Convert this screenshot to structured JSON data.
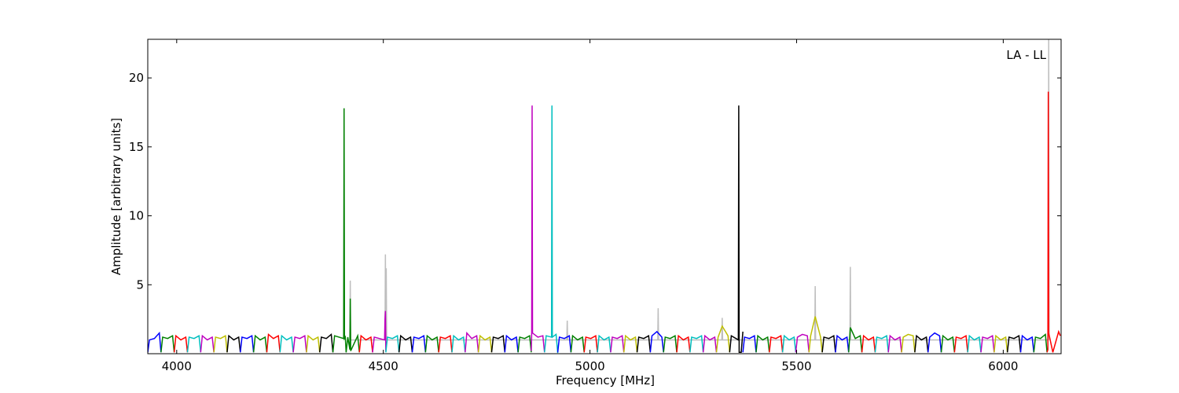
{
  "chart_data": {
    "type": "line",
    "annotation": "LA - LL",
    "xlabel": "Frequency [MHz]",
    "ylabel": "Amplitude [arbitrary units]",
    "xlim": [
      3930,
      6140
    ],
    "ylim": [
      0,
      22.8
    ],
    "xticks": [
      4000,
      4500,
      5000,
      5500,
      6000
    ],
    "yticks": [
      5,
      10,
      15,
      20
    ],
    "series": [
      {
        "color": "#bebebe",
        "x": [
          4419,
          4420,
          4421,
          4504,
          4505,
          4506,
          4507,
          4508,
          4944,
          4945,
          4946,
          5164,
          5165,
          5166,
          5319,
          5320,
          5321,
          5544,
          5545,
          5546,
          5629,
          5630,
          5631,
          6109,
          6110,
          6111
        ],
        "values": [
          1,
          5.3,
          1,
          1,
          7.2,
          1,
          6.2,
          1,
          1,
          2.4,
          1,
          1,
          3.3,
          1,
          1,
          2.6,
          1,
          1,
          4.9,
          1,
          1,
          6.3,
          1,
          1,
          22.8,
          1
        ]
      },
      {
        "color": "#0000ff",
        "x": [
          3930,
          3934,
          3946,
          3958,
          3962
        ],
        "values": [
          0.1,
          1.0,
          1.1,
          1.5,
          0.1
        ]
      },
      {
        "color": "#008000",
        "x": [
          3962,
          3966,
          3978,
          3990,
          3994
        ],
        "values": [
          0.1,
          1.2,
          1.1,
          1.3,
          0.1
        ]
      },
      {
        "color": "#ff0000",
        "x": [
          3994,
          3998,
          4010,
          4022,
          4026
        ],
        "values": [
          0.1,
          1.3,
          1.0,
          1.2,
          0.1
        ]
      },
      {
        "color": "#00bfbf",
        "x": [
          4026,
          4030,
          4042,
          4054,
          4058
        ],
        "values": [
          0.1,
          1.2,
          1.1,
          1.3,
          0.1
        ]
      },
      {
        "color": "#bf00bf",
        "x": [
          4058,
          4062,
          4074,
          4086,
          4090
        ],
        "values": [
          0.1,
          1.3,
          1.0,
          1.2,
          0.1
        ]
      },
      {
        "color": "#bfbf00",
        "x": [
          4090,
          4094,
          4106,
          4118,
          4122
        ],
        "values": [
          0.1,
          1.2,
          1.1,
          1.3,
          0.1
        ]
      },
      {
        "color": "#000000",
        "x": [
          4122,
          4126,
          4138,
          4150,
          4154
        ],
        "values": [
          0.1,
          1.3,
          1.0,
          1.2,
          0.1
        ]
      },
      {
        "color": "#0000ff",
        "x": [
          4154,
          4158,
          4170,
          4182,
          4186
        ],
        "values": [
          0.1,
          1.2,
          1.1,
          1.3,
          0.1
        ]
      },
      {
        "color": "#008000",
        "x": [
          4186,
          4190,
          4202,
          4214,
          4218
        ],
        "values": [
          0.1,
          1.3,
          1.0,
          1.2,
          0.1
        ]
      },
      {
        "color": "#ff0000",
        "x": [
          4218,
          4222,
          4234,
          4246,
          4250
        ],
        "values": [
          0.1,
          1.4,
          1.1,
          1.3,
          0.1
        ]
      },
      {
        "color": "#00bfbf",
        "x": [
          4250,
          4254,
          4266,
          4278,
          4282
        ],
        "values": [
          0.1,
          1.3,
          1.0,
          1.2,
          0.1
        ]
      },
      {
        "color": "#bf00bf",
        "x": [
          4282,
          4286,
          4298,
          4310,
          4314
        ],
        "values": [
          0.1,
          1.2,
          1.1,
          1.3,
          0.1
        ]
      },
      {
        "color": "#bfbf00",
        "x": [
          4314,
          4318,
          4330,
          4342,
          4346
        ],
        "values": [
          0.1,
          1.3,
          1.0,
          1.2,
          0.1
        ]
      },
      {
        "color": "#000000",
        "x": [
          4346,
          4350,
          4362,
          4374,
          4378
        ],
        "values": [
          0.1,
          1.2,
          1.1,
          1.4,
          0.1
        ]
      },
      {
        "color": "#008000",
        "x": [
          4378,
          4382,
          4404,
          4405,
          4406,
          4408,
          4410
        ],
        "values": [
          0.1,
          1.3,
          1.1,
          17.8,
          1.1,
          1.2,
          0.1
        ]
      },
      {
        "color": "#008000",
        "x": [
          4410,
          4414,
          4419,
          4420,
          4421,
          4438,
          4442
        ],
        "values": [
          0.1,
          1.2,
          0.3,
          4.0,
          0.2,
          1.3,
          0.1
        ]
      },
      {
        "color": "#ff0000",
        "x": [
          4442,
          4446,
          4458,
          4470,
          4474
        ],
        "values": [
          0.1,
          1.3,
          1.0,
          1.2,
          0.1
        ]
      },
      {
        "color": "#bf00bf",
        "x": [
          4474,
          4478,
          4503,
          4504,
          4505,
          4506
        ],
        "values": [
          0.1,
          1.2,
          1.0,
          2.5,
          3.1,
          0.2
        ]
      },
      {
        "color": "#00bfbf",
        "x": [
          4506,
          4510,
          4522,
          4534,
          4538
        ],
        "values": [
          0.1,
          1.2,
          1.1,
          1.3,
          0.1
        ]
      },
      {
        "color": "#000000",
        "x": [
          4538,
          4542,
          4554,
          4566,
          4570
        ],
        "values": [
          0.1,
          1.3,
          1.0,
          1.2,
          0.1
        ]
      },
      {
        "color": "#0000ff",
        "x": [
          4570,
          4574,
          4586,
          4598,
          4602
        ],
        "values": [
          0.1,
          1.2,
          1.1,
          1.3,
          0.1
        ]
      },
      {
        "color": "#008000",
        "x": [
          4602,
          4606,
          4618,
          4630,
          4634
        ],
        "values": [
          0.1,
          1.3,
          1.0,
          1.2,
          0.1
        ]
      },
      {
        "color": "#ff0000",
        "x": [
          4634,
          4638,
          4650,
          4662,
          4666
        ],
        "values": [
          0.1,
          1.2,
          1.1,
          1.3,
          0.1
        ]
      },
      {
        "color": "#00bfbf",
        "x": [
          4666,
          4670,
          4682,
          4694,
          4698
        ],
        "values": [
          0.1,
          1.3,
          1.0,
          1.2,
          0.1
        ]
      },
      {
        "color": "#bf00bf",
        "x": [
          4698,
          4702,
          4714,
          4726,
          4730
        ],
        "values": [
          0.1,
          1.5,
          1.1,
          1.3,
          0.1
        ]
      },
      {
        "color": "#bfbf00",
        "x": [
          4730,
          4734,
          4746,
          4758,
          4762
        ],
        "values": [
          0.1,
          1.3,
          1.0,
          1.2,
          0.1
        ]
      },
      {
        "color": "#000000",
        "x": [
          4762,
          4766,
          4778,
          4790,
          4794
        ],
        "values": [
          0.1,
          1.2,
          1.1,
          1.3,
          0.1
        ]
      },
      {
        "color": "#0000ff",
        "x": [
          4794,
          4798,
          4810,
          4822,
          4826
        ],
        "values": [
          0.1,
          1.3,
          1.0,
          1.2,
          0.1
        ]
      },
      {
        "color": "#008000",
        "x": [
          4826,
          4830,
          4842,
          4854,
          4858
        ],
        "values": [
          0.1,
          1.2,
          1.1,
          1.3,
          0.1
        ]
      },
      {
        "color": "#bf00bf",
        "x": [
          4858,
          4859,
          4860,
          4861,
          4874,
          4886,
          4890
        ],
        "values": [
          0.2,
          1.5,
          18.0,
          1.5,
          1.2,
          1.3,
          0.1
        ]
      },
      {
        "color": "#00bfbf",
        "x": [
          4890,
          4894,
          4907,
          4908,
          4909,
          4918,
          4922
        ],
        "values": [
          0.1,
          1.3,
          1.2,
          18.0,
          1.2,
          1.4,
          0.05
        ]
      },
      {
        "color": "#0000ff",
        "x": [
          4922,
          4926,
          4938,
          4950,
          4954
        ],
        "values": [
          0.1,
          1.2,
          1.1,
          1.3,
          0.1
        ]
      },
      {
        "color": "#008000",
        "x": [
          4954,
          4958,
          4970,
          4982,
          4986
        ],
        "values": [
          0.1,
          1.3,
          1.0,
          1.2,
          0.1
        ]
      },
      {
        "color": "#ff0000",
        "x": [
          4986,
          4990,
          5002,
          5014,
          5018
        ],
        "values": [
          0.1,
          1.2,
          1.1,
          1.3,
          0.1
        ]
      },
      {
        "color": "#00bfbf",
        "x": [
          5018,
          5022,
          5034,
          5046,
          5050
        ],
        "values": [
          0.1,
          1.3,
          1.0,
          1.2,
          0.1
        ]
      },
      {
        "color": "#bf00bf",
        "x": [
          5050,
          5054,
          5066,
          5078,
          5082
        ],
        "values": [
          0.1,
          1.2,
          1.1,
          1.3,
          0.1
        ]
      },
      {
        "color": "#bfbf00",
        "x": [
          5082,
          5086,
          5098,
          5110,
          5114
        ],
        "values": [
          0.1,
          1.3,
          1.0,
          1.2,
          0.1
        ]
      },
      {
        "color": "#000000",
        "x": [
          5114,
          5118,
          5130,
          5142,
          5146
        ],
        "values": [
          0.1,
          1.2,
          1.1,
          1.3,
          0.1
        ]
      },
      {
        "color": "#0000ff",
        "x": [
          5146,
          5150,
          5162,
          5174,
          5178
        ],
        "values": [
          0.1,
          1.3,
          1.6,
          1.2,
          0.1
        ]
      },
      {
        "color": "#008000",
        "x": [
          5178,
          5182,
          5194,
          5206,
          5210
        ],
        "values": [
          0.1,
          1.2,
          1.1,
          1.3,
          0.1
        ]
      },
      {
        "color": "#ff0000",
        "x": [
          5210,
          5214,
          5226,
          5238,
          5242
        ],
        "values": [
          0.1,
          1.3,
          1.0,
          1.2,
          0.1
        ]
      },
      {
        "color": "#00bfbf",
        "x": [
          5242,
          5246,
          5258,
          5270,
          5274
        ],
        "values": [
          0.1,
          1.2,
          1.1,
          1.3,
          0.1
        ]
      },
      {
        "color": "#bf00bf",
        "x": [
          5274,
          5278,
          5290,
          5302,
          5306
        ],
        "values": [
          0.1,
          1.3,
          1.0,
          1.2,
          0.1
        ]
      },
      {
        "color": "#bfbf00",
        "x": [
          5306,
          5310,
          5320,
          5334,
          5338
        ],
        "values": [
          0.1,
          1.2,
          2.0,
          1.3,
          0.1
        ]
      },
      {
        "color": "#000000",
        "x": [
          5338,
          5342,
          5359,
          5360,
          5361,
          5366,
          5370
        ],
        "values": [
          0.1,
          1.3,
          1.0,
          18.0,
          0.1,
          0.1,
          1.6
        ]
      },
      {
        "color": "#0000ff",
        "x": [
          5370,
          5374,
          5386,
          5398,
          5402
        ],
        "values": [
          0.1,
          1.2,
          1.1,
          1.3,
          0.1
        ]
      },
      {
        "color": "#008000",
        "x": [
          5402,
          5406,
          5418,
          5430,
          5434
        ],
        "values": [
          0.1,
          1.3,
          1.0,
          1.2,
          0.1
        ]
      },
      {
        "color": "#ff0000",
        "x": [
          5434,
          5438,
          5450,
          5462,
          5466
        ],
        "values": [
          0.1,
          1.2,
          1.1,
          1.3,
          0.1
        ]
      },
      {
        "color": "#00bfbf",
        "x": [
          5466,
          5470,
          5482,
          5494,
          5498
        ],
        "values": [
          0.1,
          1.3,
          1.0,
          1.2,
          0.1
        ]
      },
      {
        "color": "#bf00bf",
        "x": [
          5498,
          5502,
          5514,
          5526,
          5530
        ],
        "values": [
          0.1,
          1.2,
          1.4,
          1.3,
          0.1
        ]
      },
      {
        "color": "#bfbf00",
        "x": [
          5530,
          5534,
          5545,
          5558,
          5562
        ],
        "values": [
          0.1,
          1.3,
          2.7,
          1.2,
          0.1
        ]
      },
      {
        "color": "#000000",
        "x": [
          5562,
          5566,
          5578,
          5590,
          5594
        ],
        "values": [
          0.1,
          1.2,
          1.1,
          1.3,
          0.1
        ]
      },
      {
        "color": "#0000ff",
        "x": [
          5594,
          5598,
          5610,
          5622,
          5626
        ],
        "values": [
          0.1,
          1.3,
          1.0,
          1.2,
          0.1
        ]
      },
      {
        "color": "#008000",
        "x": [
          5626,
          5630,
          5642,
          5654,
          5658
        ],
        "values": [
          0.1,
          1.9,
          1.1,
          1.3,
          0.1
        ]
      },
      {
        "color": "#ff0000",
        "x": [
          5658,
          5662,
          5674,
          5686,
          5690
        ],
        "values": [
          0.1,
          1.3,
          1.0,
          1.2,
          0.1
        ]
      },
      {
        "color": "#00bfbf",
        "x": [
          5690,
          5694,
          5706,
          5718,
          5722
        ],
        "values": [
          0.1,
          1.2,
          1.1,
          1.3,
          0.1
        ]
      },
      {
        "color": "#bf00bf",
        "x": [
          5722,
          5726,
          5738,
          5750,
          5754
        ],
        "values": [
          0.1,
          1.3,
          1.0,
          1.2,
          0.1
        ]
      },
      {
        "color": "#bfbf00",
        "x": [
          5754,
          5758,
          5770,
          5782,
          5786
        ],
        "values": [
          0.1,
          1.2,
          1.4,
          1.3,
          0.1
        ]
      },
      {
        "color": "#000000",
        "x": [
          5786,
          5790,
          5802,
          5814,
          5818
        ],
        "values": [
          0.1,
          1.3,
          1.0,
          1.2,
          0.1
        ]
      },
      {
        "color": "#0000ff",
        "x": [
          5818,
          5822,
          5834,
          5846,
          5850
        ],
        "values": [
          0.1,
          1.2,
          1.5,
          1.3,
          0.1
        ]
      },
      {
        "color": "#008000",
        "x": [
          5850,
          5854,
          5866,
          5878,
          5882
        ],
        "values": [
          0.1,
          1.3,
          1.0,
          1.2,
          0.1
        ]
      },
      {
        "color": "#ff0000",
        "x": [
          5882,
          5886,
          5898,
          5910,
          5914
        ],
        "values": [
          0.1,
          1.2,
          1.1,
          1.3,
          0.1
        ]
      },
      {
        "color": "#00bfbf",
        "x": [
          5914,
          5918,
          5930,
          5942,
          5946
        ],
        "values": [
          0.1,
          1.3,
          1.0,
          1.2,
          0.1
        ]
      },
      {
        "color": "#bf00bf",
        "x": [
          5946,
          5950,
          5962,
          5974,
          5978
        ],
        "values": [
          0.1,
          1.2,
          1.1,
          1.3,
          0.1
        ]
      },
      {
        "color": "#bfbf00",
        "x": [
          5978,
          5982,
          5994,
          6006,
          6010
        ],
        "values": [
          0.1,
          1.3,
          1.0,
          1.2,
          0.1
        ]
      },
      {
        "color": "#000000",
        "x": [
          6010,
          6014,
          6026,
          6038,
          6042
        ],
        "values": [
          0.1,
          1.2,
          1.1,
          1.3,
          0.1
        ]
      },
      {
        "color": "#0000ff",
        "x": [
          6042,
          6046,
          6058,
          6070,
          6074
        ],
        "values": [
          0.1,
          1.3,
          1.0,
          1.2,
          0.1
        ]
      },
      {
        "color": "#008000",
        "x": [
          6074,
          6078,
          6090,
          6102,
          6106
        ],
        "values": [
          0.1,
          1.2,
          1.1,
          1.4,
          0.1
        ]
      },
      {
        "color": "#ff0000",
        "x": [
          6106,
          6108,
          6109,
          6110,
          6120,
          6134,
          6138
        ],
        "values": [
          0.1,
          0.3,
          19.0,
          1.5,
          0.1,
          1.6,
          1.3
        ]
      }
    ]
  }
}
